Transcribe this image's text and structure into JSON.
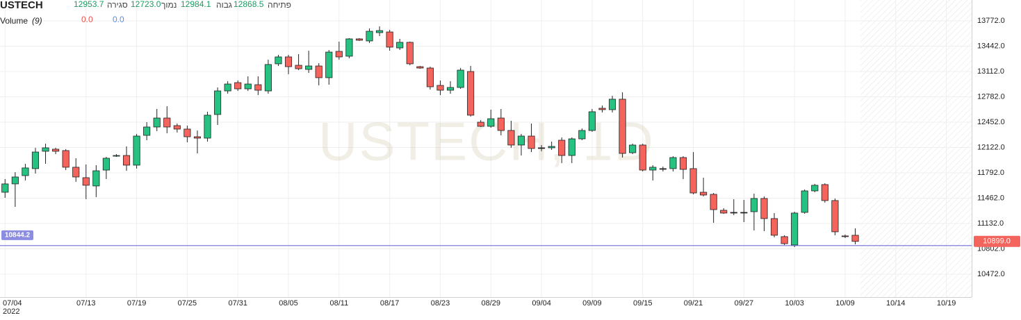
{
  "chart_data": {
    "type": "candlestick",
    "title": "USTECH",
    "watermark": "USTECH, 1D",
    "legend_readout": [
      {
        "label": "פתיחה",
        "value": "12868.5"
      },
      {
        "label": "גבוה",
        "value": "12984.1"
      },
      {
        "label": "נמוך",
        "value": "12723.0"
      },
      {
        "label": "סגירה",
        "value": "12953.7"
      }
    ],
    "volume": {
      "label": "Volume",
      "param": "(9)",
      "values": [
        "0.0",
        "0.0"
      ],
      "colors": [
        "#ef5350",
        "#5b8def"
      ]
    },
    "year_label": "2022",
    "xlim": [
      -0.5,
      95.5
    ],
    "xticks": [
      {
        "value": 0,
        "label": "07/04"
      },
      {
        "value": 8,
        "label": "07/13"
      },
      {
        "value": 13,
        "label": "07/19"
      },
      {
        "value": 18,
        "label": "07/25"
      },
      {
        "value": 23,
        "label": "07/31"
      },
      {
        "value": 28,
        "label": "08/05"
      },
      {
        "value": 33,
        "label": "08/11"
      },
      {
        "value": 38,
        "label": "08/17"
      },
      {
        "value": 43,
        "label": "08/23"
      },
      {
        "value": 48,
        "label": "08/29"
      },
      {
        "value": 53,
        "label": "09/04"
      },
      {
        "value": 58,
        "label": "09/09"
      },
      {
        "value": 63,
        "label": "09/15"
      },
      {
        "value": 68,
        "label": "09/21"
      },
      {
        "value": 73,
        "label": "09/27"
      },
      {
        "value": 78,
        "label": "10/03"
      },
      {
        "value": 83,
        "label": "10/09"
      },
      {
        "value": 88,
        "label": "10/14"
      },
      {
        "value": 93,
        "label": "10/19"
      }
    ],
    "ylim": [
      10173.6,
      14043.2
    ],
    "yticks": [
      {
        "value": 10472,
        "label": "10472.0"
      },
      {
        "value": 10802,
        "label": "10802.0"
      },
      {
        "value": 11132,
        "label": "11132.0"
      },
      {
        "value": 11462,
        "label": "11462.0"
      },
      {
        "value": 11792,
        "label": "11792.0"
      },
      {
        "value": 12122,
        "label": "12122.0"
      },
      {
        "value": 12452,
        "label": "12452.0"
      },
      {
        "value": 12782,
        "label": "12782.0"
      },
      {
        "value": 13112,
        "label": "13112.0"
      },
      {
        "value": 13442,
        "label": "13442.0"
      },
      {
        "value": 13772,
        "label": "13772.0"
      }
    ],
    "grid": true,
    "up_color": "#26c281",
    "down_color": "#f4645c",
    "open": [
      11539,
      11648,
      11756,
      11847,
      12073,
      12100,
      12082,
      11865,
      11729,
      11621,
      11828,
      12009,
      12018,
      11892,
      12280,
      12389,
      12506,
      12407,
      12362,
      12262,
      12244,
      12552,
      12859,
      12967,
      12886,
      12940,
      12859,
      13212,
      13302,
      13193,
      13139,
      13184,
      13031,
      13374,
      13311,
      13537,
      13510,
      13618,
      13627,
      13419,
      13492,
      13175,
      13157,
      12931,
      12868,
      12904,
      13112,
      12452,
      12398,
      12506,
      12344,
      12154,
      12271,
      12118,
      12118,
      12217,
      12018,
      12235,
      12344,
      12633,
      12615,
      12751,
      12054,
      12154,
      11828,
      11847,
      11847,
      11991,
      11847,
      11539,
      11512,
      11304,
      11277,
      11277,
      11286,
      11458,
      11196,
      10961,
      10852,
      11277,
      11557,
      11639,
      11431,
      10970,
      10979
    ],
    "high": [
      11711,
      11801,
      11910,
      12118,
      12172,
      12118,
      12100,
      11982,
      11901,
      11892,
      12000,
      12036,
      12136,
      12299,
      12452,
      12624,
      12660,
      12434,
      12407,
      12344,
      12588,
      12904,
      12986,
      12995,
      13049,
      13049,
      13266,
      13329,
      13329,
      13338,
      13383,
      13221,
      13392,
      13501,
      13546,
      13546,
      13673,
      13700,
      13655,
      13537,
      13501,
      13184,
      13175,
      12995,
      12986,
      13157,
      13184,
      12479,
      12615,
      12624,
      12470,
      12299,
      12434,
      12154,
      12199,
      12253,
      12253,
      12371,
      12624,
      12669,
      12796,
      12841,
      12172,
      12172,
      11892,
      11874,
      12009,
      12009,
      12063,
      11729,
      11530,
      11331,
      11449,
      11440,
      11521,
      11485,
      11268,
      10979,
      11286,
      11575,
      11648,
      11657,
      11458,
      10988,
      11069
    ],
    "low": [
      11467,
      11349,
      11693,
      11783,
      11910,
      12036,
      11828,
      11675,
      11449,
      11476,
      11711,
      12000,
      11819,
      11847,
      12217,
      12335,
      12308,
      12317,
      12190,
      12045,
      12199,
      12416,
      12823,
      12859,
      12859,
      12805,
      12823,
      13184,
      13076,
      13130,
      13094,
      12931,
      12940,
      13266,
      13284,
      13510,
      13483,
      13573,
      13383,
      13392,
      13193,
      13148,
      12877,
      12805,
      12823,
      12886,
      12525,
      12389,
      12380,
      12280,
      12118,
      12018,
      12063,
      12073,
      12091,
      11919,
      11919,
      12217,
      12326,
      12579,
      12579,
      11991,
      12036,
      11810,
      11693,
      11810,
      11810,
      11711,
      11512,
      11485,
      11141,
      11259,
      11241,
      11150,
      11042,
      11033,
      10952,
      10852,
      10825,
      11259,
      11539,
      11404,
      10979,
      10943,
      10861
    ],
    "close": [
      11648,
      11738,
      11856,
      12063,
      12118,
      12073,
      11865,
      11738,
      11630,
      11819,
      11982,
      12018,
      11892,
      12271,
      12389,
      12506,
      12389,
      12362,
      12262,
      12244,
      12543,
      12859,
      12949,
      12886,
      12949,
      12868,
      13203,
      13302,
      13175,
      13148,
      13184,
      13031,
      13365,
      13302,
      13537,
      13519,
      13636,
      13645,
      13429,
      13492,
      13212,
      13157,
      12913,
      12868,
      12904,
      13130,
      12543,
      12398,
      12497,
      12344,
      12154,
      12271,
      12109,
      12118,
      12136,
      12018,
      12235,
      12344,
      12588,
      12615,
      12751,
      12045,
      12154,
      11828,
      11865,
      11847,
      11991,
      11837,
      11530,
      11503,
      11313,
      11268,
      11277,
      11277,
      11458,
      11196,
      10979,
      10870,
      11268,
      11557,
      11630,
      11431,
      11024,
      10961,
      10899
    ],
    "last_value_label": "10899.0",
    "price_line": 10844.2,
    "price_line_color": "#6f6fd8"
  }
}
